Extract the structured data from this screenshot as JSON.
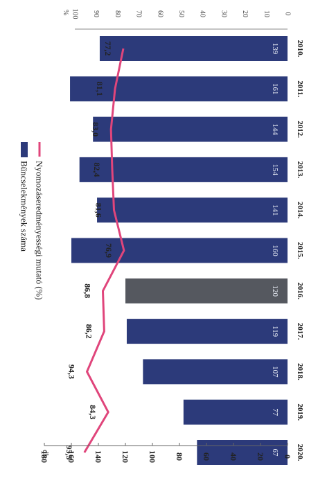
{
  "chart_data": {
    "type": "bar",
    "categories": [
      "2010.",
      "2011.",
      "2012.",
      "2013.",
      "2014.",
      "2015.",
      "2016.",
      "2017.",
      "2018.",
      "2019.",
      "2020."
    ],
    "series": [
      {
        "name": "Bűncselekmények száma",
        "type": "bar",
        "axis": "left",
        "values": [
          139,
          161,
          144,
          154,
          141,
          160,
          120,
          119,
          107,
          77,
          67
        ],
        "value_labels": [
          "139",
          "161",
          "144",
          "154",
          "141",
          "160",
          "120",
          "119",
          "107",
          "77",
          "67"
        ],
        "colors": [
          "#2c3a7a",
          "#2c3a7a",
          "#2c3a7a",
          "#2c3a7a",
          "#2c3a7a",
          "#2c3a7a",
          "#55585f",
          "#2c3a7a",
          "#2c3a7a",
          "#2c3a7a",
          "#2c3a7a"
        ]
      },
      {
        "name": "Nyomozáseredményességi mutató (%)",
        "type": "line",
        "axis": "right",
        "values": [
          77.2,
          81.1,
          83.0,
          82.4,
          81.6,
          76.9,
          86.8,
          86.2,
          94.3,
          84.3,
          95.5
        ],
        "value_labels": [
          "77,2",
          "81,1",
          "83,0",
          "82,4",
          "81,6",
          "76,9",
          "86,8",
          "86,2",
          "94,3",
          "84,3",
          "95,5"
        ],
        "color": "#e0457b"
      }
    ],
    "left_axis": {
      "unit_label": "db",
      "ticks": [
        "180",
        "160",
        "140",
        "120",
        "100",
        "80",
        "60",
        "40",
        "20",
        "0"
      ],
      "ylim": [
        0,
        180
      ]
    },
    "right_axis": {
      "unit_label": "%",
      "ticks": [
        "100",
        "90",
        "80",
        "70",
        "60",
        "50",
        "40",
        "30",
        "20",
        "10",
        "0"
      ],
      "ylim": [
        0,
        100
      ]
    },
    "legend": {
      "position": "top",
      "items": [
        "Bűncselekmények száma",
        "Nyomozáseredményességi mutató (%)"
      ]
    },
    "grid": false,
    "orientation": "rotated-90-clockwise"
  }
}
